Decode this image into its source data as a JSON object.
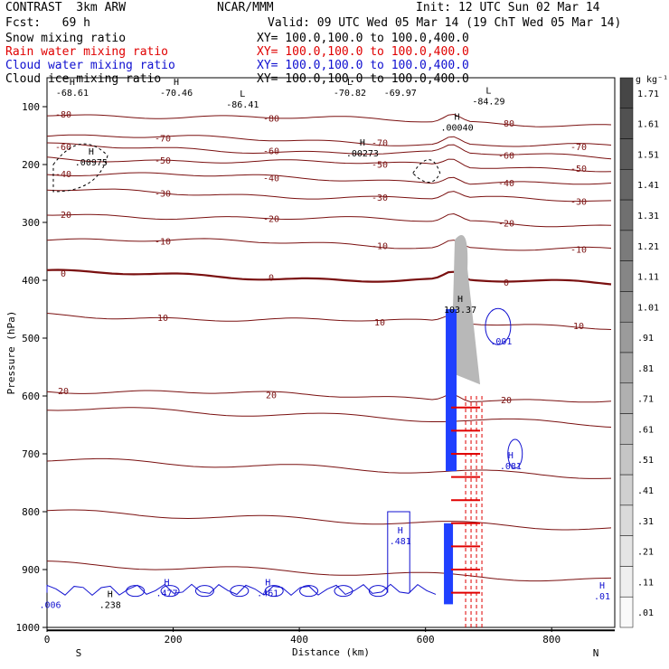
{
  "header": {
    "model": "CONTRAST  3km ARW",
    "fcst": "Fcst:   69 h",
    "center": "NCAR/MMM",
    "init": "Init: 12 UTC Sun 02 Mar 14",
    "valid": "Valid: 09 UTC Wed 05 Mar 14 (19 ChT Wed 05 Mar 14)"
  },
  "legend": [
    {
      "name": "Snow mixing ratio",
      "xy": "XY= 100.0,100.0 to 100.0,400.0",
      "color": "#000000"
    },
    {
      "name": "Rain water mixing ratio",
      "xy": "XY= 100.0,100.0 to 100.0,400.0",
      "color": "#e00000"
    },
    {
      "name": "Cloud water mixing ratio",
      "xy": "XY= 100.0,100.0 to 100.0,400.0",
      "color": "#1010d0"
    },
    {
      "name": "Cloud ice mixing ratio",
      "xy": "XY= 100.0,100.0 to 100.0,400.0",
      "color": "#000000"
    }
  ],
  "colorbar": {
    "unit": "g kg⁻¹",
    "levels": [
      "1.71",
      "1.61",
      "1.51",
      "1.41",
      "1.31",
      "1.21",
      "1.11",
      "1.01",
      ".91",
      ".81",
      ".71",
      ".61",
      ".51",
      ".41",
      ".31",
      ".21",
      ".11",
      ".01"
    ]
  },
  "chart_data": {
    "type": "contour",
    "xlabel": "Distance (km)",
    "ylabel": "Pressure (hPa)",
    "xlim": [
      0,
      900
    ],
    "ylim": [
      1000,
      50
    ],
    "x_ticks": [
      "0",
      "200",
      "400",
      "600",
      "800"
    ],
    "y_ticks": [
      "100",
      "200",
      "300",
      "400",
      "500",
      "600",
      "700",
      "800",
      "900",
      "1000"
    ],
    "x_end_labels": {
      "left": "S",
      "right": "N"
    },
    "temperature_isotherms": [
      {
        "label": "-80",
        "p": 112
      },
      {
        "label": "-70",
        "p": 150
      },
      {
        "label": "-60",
        "p": 168
      },
      {
        "label": "-50",
        "p": 188
      },
      {
        "label": "-40",
        "p": 215
      },
      {
        "label": "-30",
        "p": 245
      },
      {
        "label": "-20",
        "p": 285
      },
      {
        "label": "-10",
        "p": 328
      },
      {
        "label": "0",
        "p": 387
      },
      {
        "label": "10",
        "p": 460
      },
      {
        "label": "20",
        "p": 590
      }
    ],
    "hl_labels": [
      {
        "mark": "H",
        "value": "-68.61"
      },
      {
        "mark": "H",
        "value": "-70.46"
      },
      {
        "mark": "L",
        "value": "-86.41"
      },
      {
        "mark": "L",
        "value": "-70.82"
      },
      {
        "mark": "",
        "value": "-69.97"
      },
      {
        "mark": "L",
        "value": "-84.29"
      },
      {
        "mark": "H",
        "value": ".00040"
      },
      {
        "mark": "H",
        "value": ".00975"
      },
      {
        "mark": "H",
        "value": ".00273"
      },
      {
        "mark": "H",
        "value": "103.37"
      },
      {
        "mark": "",
        "value": ".001"
      },
      {
        "mark": "H",
        "value": ".081"
      },
      {
        "mark": "H",
        "value": ".481"
      },
      {
        "mark": "H",
        "value": ".477"
      },
      {
        "mark": "H",
        "value": ".461"
      },
      {
        "mark": "H",
        "value": ".238"
      },
      {
        "mark": "",
        "value": ".006"
      },
      {
        "mark": "H",
        "value": ".01"
      }
    ]
  }
}
